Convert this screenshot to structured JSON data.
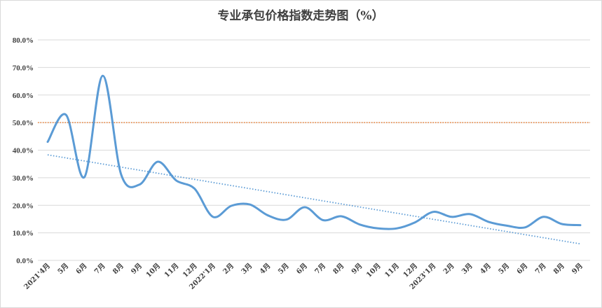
{
  "chart_data": {
    "type": "line",
    "title": "专业承包价格指数走势图（%）",
    "xlabel": "",
    "ylabel": "",
    "categories": [
      "2021'4月",
      "5月",
      "6月",
      "7月",
      "8月",
      "9月",
      "10月",
      "11月",
      "12月",
      "2022'1月",
      "2月",
      "3月",
      "4月",
      "5月",
      "6月",
      "7月",
      "8月",
      "9月",
      "10月",
      "11月",
      "12月",
      "2023'1月",
      "2月",
      "3月",
      "4月",
      "5月",
      "6月",
      "7月",
      "8月",
      "9月"
    ],
    "series": [
      {
        "name": "",
        "color": "#5b9bd5",
        "values": [
          43.0,
          52.8,
          30.2,
          67.0,
          31.2,
          27.5,
          35.8,
          29.0,
          26.0,
          15.8,
          19.8,
          20.3,
          16.3,
          14.8,
          19.3,
          14.6,
          16.0,
          13.0,
          11.6,
          11.6,
          13.8,
          17.6,
          15.8,
          16.8,
          14.0,
          12.6,
          12.0,
          15.8,
          13.2,
          12.8
        ]
      }
    ],
    "trendline": {
      "style": "dotted",
      "color": "#5b9bd5",
      "start": 38.3,
      "end": 6.0
    },
    "reference_line": {
      "value": 50.0,
      "style": "dotted",
      "color": "#ed7d31"
    },
    "yticks": [
      "0.0%",
      "10.0%",
      "20.0%",
      "30.0%",
      "40.0%",
      "50.0%",
      "60.0%",
      "70.0%",
      "80.0%"
    ],
    "ylim": [
      0,
      80
    ],
    "grid": true,
    "legend": "none"
  }
}
